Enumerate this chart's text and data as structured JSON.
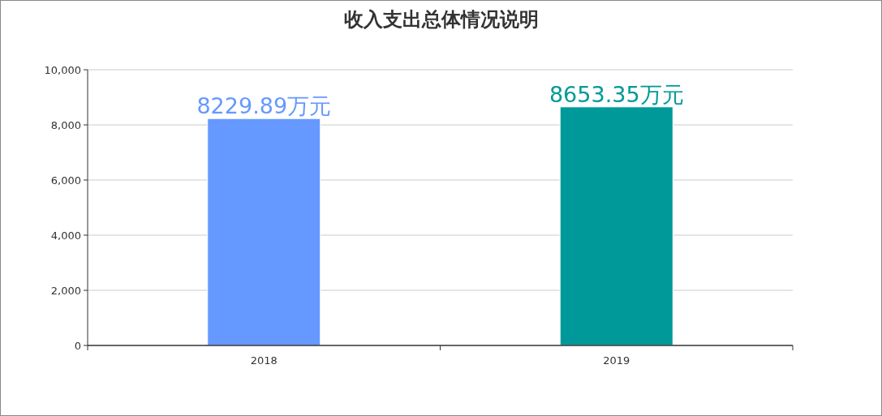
{
  "chart_data": {
    "type": "bar",
    "title": "收入支出总体情况说明",
    "categories": [
      "2018",
      "2019"
    ],
    "values": [
      8229.89,
      8653.35
    ],
    "colors": [
      "#6699ff",
      "#009999"
    ],
    "value_labels": [
      "8229.89万元",
      "8653.35万元"
    ],
    "ylim": [
      0,
      10000
    ],
    "yticks": [
      0,
      {
        "value": 2000,
        "label": "2,000"
      },
      {
        "value": 4000,
        "label": "4,000"
      },
      {
        "value": 6000,
        "label": "6,000"
      },
      {
        "value": 8000,
        "label": "8,000"
      },
      {
        "value": 10000,
        "label": "10,000"
      }
    ],
    "grid": "y"
  }
}
